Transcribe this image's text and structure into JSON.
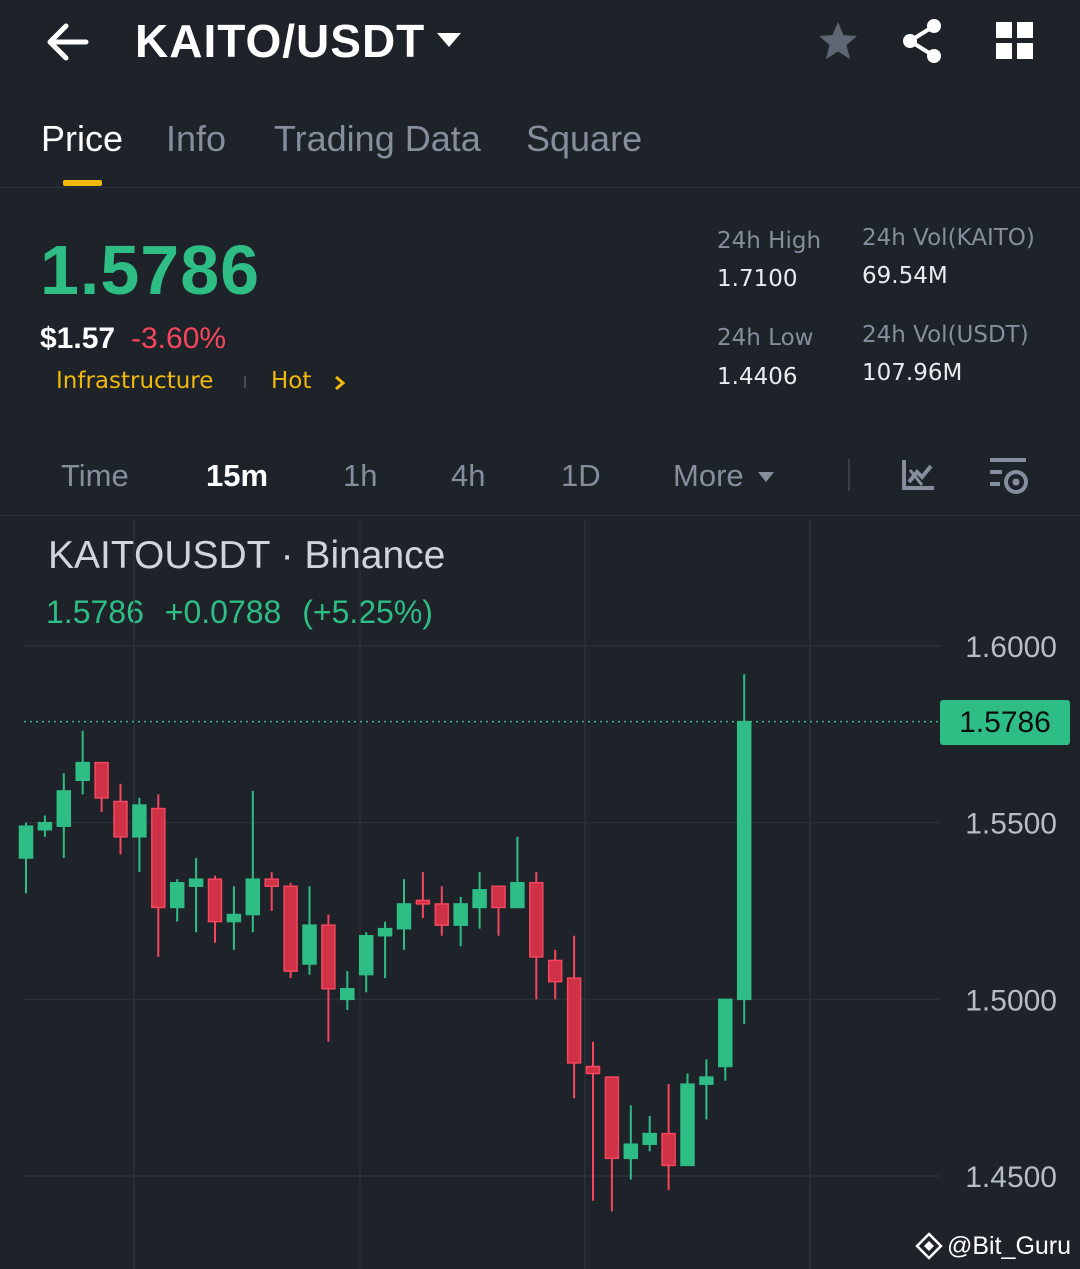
{
  "header": {
    "pair": "KAITO/USDT",
    "back_icon": "arrow-left-icon",
    "favorite_icon": "star-icon",
    "share_icon": "share-icon",
    "menu_icon": "grid-icon"
  },
  "tabs": [
    {
      "label": "Price",
      "active": true
    },
    {
      "label": "Info",
      "active": false
    },
    {
      "label": "Trading Data",
      "active": false
    },
    {
      "label": "Square",
      "active": false
    }
  ],
  "price": {
    "last": "1.5786",
    "usd": "$1.57",
    "change_pct": "-3.60%",
    "tags": [
      "Infrastructure",
      "Hot"
    ]
  },
  "stats": {
    "high_label": "24h High",
    "high_value": "1.7100",
    "low_label": "24h Low",
    "low_value": "1.4406",
    "vol_base_label": "24h Vol(KAITO)",
    "vol_base_value": "69.54M",
    "vol_quote_label": "24h Vol(USDT)",
    "vol_quote_value": "107.96M"
  },
  "intervals": {
    "items": [
      "Time",
      "15m",
      "1h",
      "4h",
      "1D",
      "More"
    ],
    "selected": "15m"
  },
  "chart": {
    "title": "KAITOUSDT · Binance",
    "last": "1.5786",
    "change": "+0.0788",
    "change_pct": "(+5.25%)",
    "price_tag": "1.5786"
  },
  "watermark": "@Bit_Guru",
  "colors": {
    "up": "#2ebd85",
    "down": "#f6465d",
    "accent": "#f0b90b",
    "background": "#1e2229"
  },
  "chart_data": {
    "type": "candlestick",
    "y_tick_labels": [
      "1.6000",
      "1.5500",
      "1.5000",
      "1.4500"
    ],
    "ylim": [
      1.43,
      1.62
    ],
    "last_price": 1.5786,
    "candles": [
      {
        "o": 1.54,
        "h": 1.55,
        "l": 1.53,
        "c": 1.549
      },
      {
        "o": 1.548,
        "h": 1.552,
        "l": 1.546,
        "c": 1.55
      },
      {
        "o": 1.549,
        "h": 1.564,
        "l": 1.54,
        "c": 1.559
      },
      {
        "o": 1.562,
        "h": 1.576,
        "l": 1.558,
        "c": 1.567
      },
      {
        "o": 1.567,
        "h": 1.567,
        "l": 1.553,
        "c": 1.557
      },
      {
        "o": 1.556,
        "h": 1.561,
        "l": 1.541,
        "c": 1.546
      },
      {
        "o": 1.546,
        "h": 1.557,
        "l": 1.536,
        "c": 1.555
      },
      {
        "o": 1.554,
        "h": 1.558,
        "l": 1.512,
        "c": 1.526
      },
      {
        "o": 1.526,
        "h": 1.534,
        "l": 1.522,
        "c": 1.533
      },
      {
        "o": 1.532,
        "h": 1.54,
        "l": 1.519,
        "c": 1.534
      },
      {
        "o": 1.534,
        "h": 1.535,
        "l": 1.516,
        "c": 1.522
      },
      {
        "o": 1.522,
        "h": 1.532,
        "l": 1.514,
        "c": 1.524
      },
      {
        "o": 1.524,
        "h": 1.559,
        "l": 1.519,
        "c": 1.534
      },
      {
        "o": 1.534,
        "h": 1.536,
        "l": 1.525,
        "c": 1.532
      },
      {
        "o": 1.532,
        "h": 1.533,
        "l": 1.506,
        "c": 1.508
      },
      {
        "o": 1.51,
        "h": 1.532,
        "l": 1.507,
        "c": 1.521
      },
      {
        "o": 1.521,
        "h": 1.524,
        "l": 1.488,
        "c": 1.503
      },
      {
        "o": 1.5,
        "h": 1.508,
        "l": 1.497,
        "c": 1.503
      },
      {
        "o": 1.507,
        "h": 1.519,
        "l": 1.502,
        "c": 1.518
      },
      {
        "o": 1.518,
        "h": 1.522,
        "l": 1.506,
        "c": 1.52
      },
      {
        "o": 1.52,
        "h": 1.534,
        "l": 1.514,
        "c": 1.527
      },
      {
        "o": 1.528,
        "h": 1.536,
        "l": 1.523,
        "c": 1.527
      },
      {
        "o": 1.527,
        "h": 1.532,
        "l": 1.518,
        "c": 1.521
      },
      {
        "o": 1.521,
        "h": 1.529,
        "l": 1.515,
        "c": 1.527
      },
      {
        "o": 1.526,
        "h": 1.536,
        "l": 1.52,
        "c": 1.531
      },
      {
        "o": 1.532,
        "h": 1.532,
        "l": 1.518,
        "c": 1.526
      },
      {
        "o": 1.526,
        "h": 1.546,
        "l": 1.526,
        "c": 1.533
      },
      {
        "o": 1.533,
        "h": 1.536,
        "l": 1.5,
        "c": 1.512
      },
      {
        "o": 1.511,
        "h": 1.514,
        "l": 1.5,
        "c": 1.505
      },
      {
        "o": 1.506,
        "h": 1.518,
        "l": 1.472,
        "c": 1.482
      },
      {
        "o": 1.481,
        "h": 1.488,
        "l": 1.443,
        "c": 1.479
      },
      {
        "o": 1.478,
        "h": 1.478,
        "l": 1.44,
        "c": 1.455
      },
      {
        "o": 1.455,
        "h": 1.47,
        "l": 1.449,
        "c": 1.459
      },
      {
        "o": 1.459,
        "h": 1.467,
        "l": 1.457,
        "c": 1.462
      },
      {
        "o": 1.462,
        "h": 1.476,
        "l": 1.446,
        "c": 1.453
      },
      {
        "o": 1.453,
        "h": 1.479,
        "l": 1.453,
        "c": 1.476
      },
      {
        "o": 1.476,
        "h": 1.483,
        "l": 1.466,
        "c": 1.478
      },
      {
        "o": 1.481,
        "h": 1.5,
        "l": 1.477,
        "c": 1.5
      },
      {
        "o": 1.5,
        "h": 1.592,
        "l": 1.493,
        "c": 1.5786
      }
    ]
  }
}
